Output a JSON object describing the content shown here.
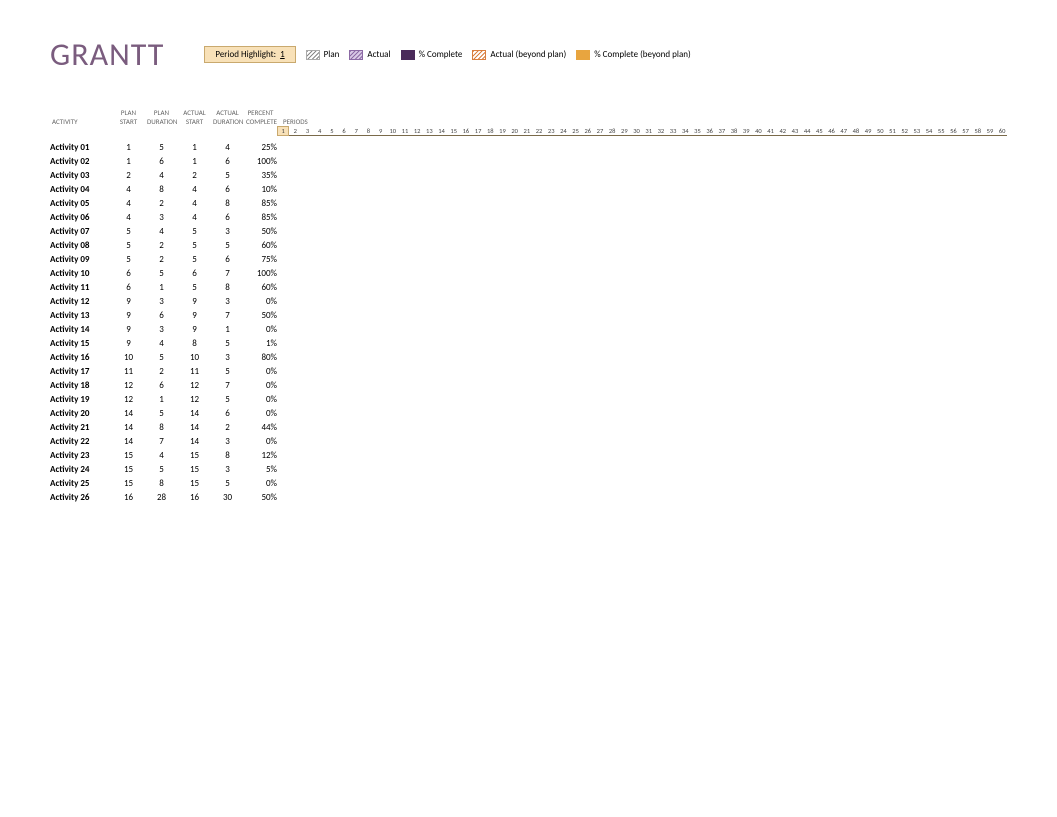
{
  "title": "GRANTT",
  "title_color": "#7a5c7e",
  "legend": {
    "highlight_label": "Period Highlight:",
    "highlight_value": "1",
    "items": [
      {
        "key": "plan",
        "label": "Plan"
      },
      {
        "key": "actual",
        "label": "Actual"
      },
      {
        "key": "complete",
        "label": "% Complete"
      },
      {
        "key": "beyondplan",
        "label": "Actual (beyond plan)"
      },
      {
        "key": "completebeyond",
        "label": "% Complete (beyond plan)"
      }
    ]
  },
  "columns": {
    "activity": "ACTIVITY",
    "plan_start": "PLAN START",
    "plan_duration": "PLAN DURATION",
    "actual_start": "ACTUAL START",
    "actual_duration": "ACTUAL DURATION",
    "percent_complete": "PERCENT COMPLETE",
    "periods": "PERIODS"
  },
  "period_count": 60,
  "highlighted_period": 1,
  "rows": [
    {
      "activity": "Activity 01",
      "plan_start": 1,
      "plan_duration": 5,
      "actual_start": 1,
      "actual_duration": 4,
      "percent_complete": "25%"
    },
    {
      "activity": "Activity 02",
      "plan_start": 1,
      "plan_duration": 6,
      "actual_start": 1,
      "actual_duration": 6,
      "percent_complete": "100%"
    },
    {
      "activity": "Activity 03",
      "plan_start": 2,
      "plan_duration": 4,
      "actual_start": 2,
      "actual_duration": 5,
      "percent_complete": "35%"
    },
    {
      "activity": "Activity 04",
      "plan_start": 4,
      "plan_duration": 8,
      "actual_start": 4,
      "actual_duration": 6,
      "percent_complete": "10%"
    },
    {
      "activity": "Activity 05",
      "plan_start": 4,
      "plan_duration": 2,
      "actual_start": 4,
      "actual_duration": 8,
      "percent_complete": "85%"
    },
    {
      "activity": "Activity 06",
      "plan_start": 4,
      "plan_duration": 3,
      "actual_start": 4,
      "actual_duration": 6,
      "percent_complete": "85%"
    },
    {
      "activity": "Activity 07",
      "plan_start": 5,
      "plan_duration": 4,
      "actual_start": 5,
      "actual_duration": 3,
      "percent_complete": "50%"
    },
    {
      "activity": "Activity 08",
      "plan_start": 5,
      "plan_duration": 2,
      "actual_start": 5,
      "actual_duration": 5,
      "percent_complete": "60%"
    },
    {
      "activity": "Activity 09",
      "plan_start": 5,
      "plan_duration": 2,
      "actual_start": 5,
      "actual_duration": 6,
      "percent_complete": "75%"
    },
    {
      "activity": "Activity 10",
      "plan_start": 6,
      "plan_duration": 5,
      "actual_start": 6,
      "actual_duration": 7,
      "percent_complete": "100%"
    },
    {
      "activity": "Activity 11",
      "plan_start": 6,
      "plan_duration": 1,
      "actual_start": 5,
      "actual_duration": 8,
      "percent_complete": "60%"
    },
    {
      "activity": "Activity 12",
      "plan_start": 9,
      "plan_duration": 3,
      "actual_start": 9,
      "actual_duration": 3,
      "percent_complete": "0%"
    },
    {
      "activity": "Activity 13",
      "plan_start": 9,
      "plan_duration": 6,
      "actual_start": 9,
      "actual_duration": 7,
      "percent_complete": "50%"
    },
    {
      "activity": "Activity 14",
      "plan_start": 9,
      "plan_duration": 3,
      "actual_start": 9,
      "actual_duration": 1,
      "percent_complete": "0%"
    },
    {
      "activity": "Activity 15",
      "plan_start": 9,
      "plan_duration": 4,
      "actual_start": 8,
      "actual_duration": 5,
      "percent_complete": "1%"
    },
    {
      "activity": "Activity 16",
      "plan_start": 10,
      "plan_duration": 5,
      "actual_start": 10,
      "actual_duration": 3,
      "percent_complete": "80%"
    },
    {
      "activity": "Activity 17",
      "plan_start": 11,
      "plan_duration": 2,
      "actual_start": 11,
      "actual_duration": 5,
      "percent_complete": "0%"
    },
    {
      "activity": "Activity 18",
      "plan_start": 12,
      "plan_duration": 6,
      "actual_start": 12,
      "actual_duration": 7,
      "percent_complete": "0%"
    },
    {
      "activity": "Activity 19",
      "plan_start": 12,
      "plan_duration": 1,
      "actual_start": 12,
      "actual_duration": 5,
      "percent_complete": "0%"
    },
    {
      "activity": "Activity 20",
      "plan_start": 14,
      "plan_duration": 5,
      "actual_start": 14,
      "actual_duration": 6,
      "percent_complete": "0%"
    },
    {
      "activity": "Activity 21",
      "plan_start": 14,
      "plan_duration": 8,
      "actual_start": 14,
      "actual_duration": 2,
      "percent_complete": "44%"
    },
    {
      "activity": "Activity 22",
      "plan_start": 14,
      "plan_duration": 7,
      "actual_start": 14,
      "actual_duration": 3,
      "percent_complete": "0%"
    },
    {
      "activity": "Activity 23",
      "plan_start": 15,
      "plan_duration": 4,
      "actual_start": 15,
      "actual_duration": 8,
      "percent_complete": "12%"
    },
    {
      "activity": "Activity 24",
      "plan_start": 15,
      "plan_duration": 5,
      "actual_start": 15,
      "actual_duration": 3,
      "percent_complete": "5%"
    },
    {
      "activity": "Activity 25",
      "plan_start": 15,
      "plan_duration": 8,
      "actual_start": 15,
      "actual_duration": 5,
      "percent_complete": "0%"
    },
    {
      "activity": "Activity 26",
      "plan_start": 16,
      "plan_duration": 28,
      "actual_start": 16,
      "actual_duration": 30,
      "percent_complete": "50%"
    }
  ],
  "colors": {
    "title": "#7a5c7e",
    "legend_bg": "#f8e1b8",
    "legend_border": "#c9a96e",
    "periods_border": "#7a6a4a",
    "text": "#333333",
    "header_text": "#666666"
  }
}
